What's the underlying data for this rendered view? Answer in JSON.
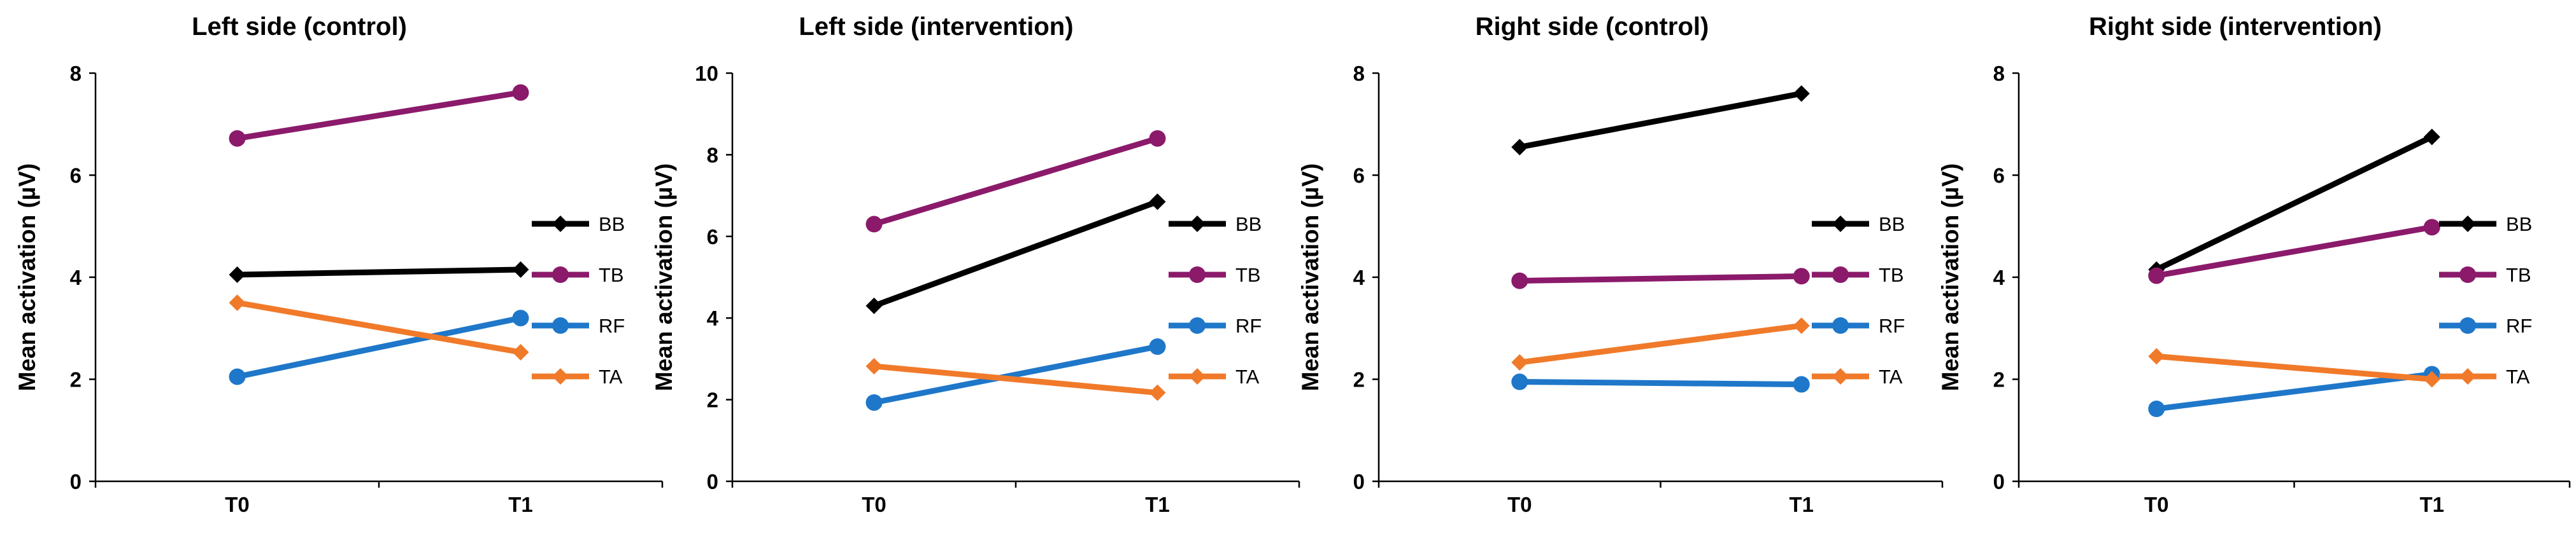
{
  "chart_data": [
    {
      "type": "line",
      "title": "Left side (control)",
      "ylabel": "Mean activation (µV)",
      "xlabel": "",
      "categories": [
        "T0",
        "T1"
      ],
      "ylim": [
        0,
        8
      ],
      "yticks": [
        0,
        2,
        4,
        6,
        8
      ],
      "grid": false,
      "legend": "right",
      "series": [
        {
          "name": "BB",
          "values": [
            4.05,
            4.15
          ],
          "color": "#000000",
          "marker": "diamond"
        },
        {
          "name": "TB",
          "values": [
            6.72,
            7.62
          ],
          "color": "#8b1a6b",
          "marker": "circle"
        },
        {
          "name": "RF",
          "values": [
            2.05,
            3.2
          ],
          "color": "#1f77c9",
          "marker": "circle"
        },
        {
          "name": "TA",
          "values": [
            3.5,
            2.53
          ],
          "color": "#f07a2a",
          "marker": "diamond"
        }
      ]
    },
    {
      "type": "line",
      "title": "Left side (intervention)",
      "ylabel": "Mean activation (µV)",
      "xlabel": "",
      "categories": [
        "T0",
        "T1"
      ],
      "ylim": [
        0,
        10
      ],
      "yticks": [
        0,
        2,
        4,
        6,
        8,
        10
      ],
      "grid": false,
      "legend": "right",
      "series": [
        {
          "name": "BB",
          "values": [
            4.3,
            6.85
          ],
          "color": "#000000",
          "marker": "diamond"
        },
        {
          "name": "TB",
          "values": [
            6.3,
            8.4
          ],
          "color": "#8b1a6b",
          "marker": "circle"
        },
        {
          "name": "RF",
          "values": [
            1.93,
            3.3
          ],
          "color": "#1f77c9",
          "marker": "circle"
        },
        {
          "name": "TA",
          "values": [
            2.82,
            2.17
          ],
          "color": "#f07a2a",
          "marker": "diamond"
        }
      ]
    },
    {
      "type": "line",
      "title": "Right side (control)",
      "ylabel": "Mean activation (µV)",
      "xlabel": "",
      "categories": [
        "T0",
        "T1"
      ],
      "ylim": [
        0,
        8
      ],
      "yticks": [
        0,
        2,
        4,
        6,
        8
      ],
      "grid": false,
      "legend": "right",
      "series": [
        {
          "name": "BB",
          "values": [
            6.55,
            7.6
          ],
          "color": "#000000",
          "marker": "diamond"
        },
        {
          "name": "TB",
          "values": [
            3.93,
            4.02
          ],
          "color": "#8b1a6b",
          "marker": "circle"
        },
        {
          "name": "RF",
          "values": [
            1.95,
            1.9
          ],
          "color": "#1f77c9",
          "marker": "circle"
        },
        {
          "name": "TA",
          "values": [
            2.33,
            3.05
          ],
          "color": "#f07a2a",
          "marker": "diamond"
        }
      ]
    },
    {
      "type": "line",
      "title": "Right side (intervention)",
      "ylabel": "Mean activation (µV)",
      "xlabel": "",
      "categories": [
        "T0",
        "T1"
      ],
      "ylim": [
        0,
        8
      ],
      "yticks": [
        0,
        2,
        4,
        6,
        8
      ],
      "grid": false,
      "legend": "right",
      "series": [
        {
          "name": "BB",
          "values": [
            4.15,
            6.75
          ],
          "color": "#000000",
          "marker": "diamond"
        },
        {
          "name": "TB",
          "values": [
            4.03,
            4.98
          ],
          "color": "#8b1a6b",
          "marker": "circle"
        },
        {
          "name": "RF",
          "values": [
            1.42,
            2.1
          ],
          "color": "#1f77c9",
          "marker": "circle"
        },
        {
          "name": "TA",
          "values": [
            2.45,
            2.0
          ],
          "color": "#f07a2a",
          "marker": "diamond"
        }
      ]
    }
  ]
}
